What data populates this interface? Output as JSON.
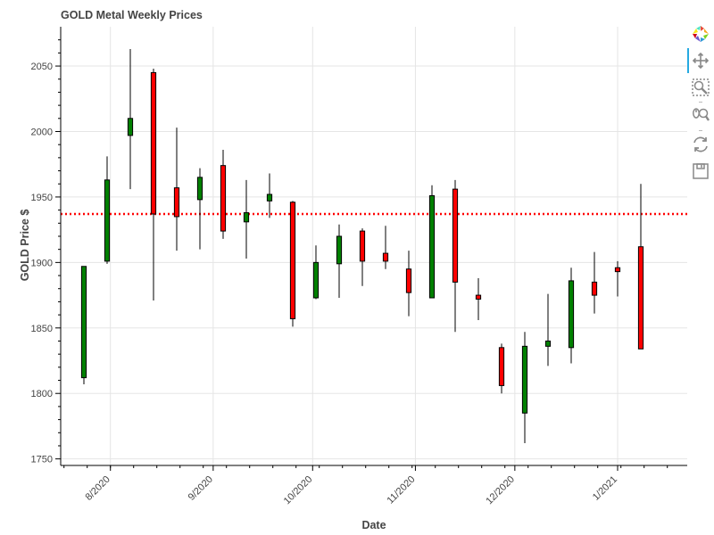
{
  "title": "GOLD Metal Weekly Prices",
  "toolbar": {
    "tools": [
      {
        "name": "bokeh-logo-icon"
      },
      {
        "name": "pan-tool-icon"
      },
      {
        "name": "box-zoom-tool-icon"
      },
      {
        "name": "wheel-zoom-tool-icon"
      },
      {
        "name": "reset-tool-icon"
      },
      {
        "name": "save-tool-icon"
      }
    ]
  },
  "chart_data": {
    "type": "candlestick",
    "title": "GOLD Metal Weekly Prices",
    "xlabel": "Date",
    "ylabel": "GOLD Price $",
    "x_tick_labels": [
      "8/2020",
      "9/2020",
      "10/2020",
      "11/2020",
      "12/2020",
      "1/2021"
    ],
    "x_ticks": [
      "2020-08-01",
      "2020-09-01",
      "2020-10-01",
      "2020-11-01",
      "2020-12-01",
      "2021-01-01"
    ],
    "xlim": [
      "2020-07-17",
      "2021-01-22"
    ],
    "y_ticks": [
      1750,
      1800,
      1850,
      1900,
      1950,
      2000,
      2050
    ],
    "ylim": [
      1745,
      2080
    ],
    "grid": true,
    "up_color": "#008000",
    "down_color": "#ff0000",
    "reference_line": {
      "value": 1937,
      "color": "#ff0000",
      "style": "dotted"
    },
    "candles": [
      {
        "date": "2020-07-24",
        "open": 1812,
        "high": 1897,
        "low": 1807,
        "close": 1897
      },
      {
        "date": "2020-07-31",
        "open": 1901,
        "high": 1981,
        "low": 1899,
        "close": 1963
      },
      {
        "date": "2020-08-07",
        "open": 1997,
        "high": 2063,
        "low": 1956,
        "close": 2010
      },
      {
        "date": "2020-08-14",
        "open": 2045,
        "high": 2048,
        "low": 1871,
        "close": 1937
      },
      {
        "date": "2020-08-21",
        "open": 1957,
        "high": 2003,
        "low": 1909,
        "close": 1935
      },
      {
        "date": "2020-08-28",
        "open": 1948,
        "high": 1972,
        "low": 1910,
        "close": 1965
      },
      {
        "date": "2020-09-04",
        "open": 1974,
        "high": 1986,
        "low": 1918,
        "close": 1924
      },
      {
        "date": "2020-09-11",
        "open": 1931,
        "high": 1963,
        "low": 1903,
        "close": 1938
      },
      {
        "date": "2020-09-18",
        "open": 1947,
        "high": 1968,
        "low": 1934,
        "close": 1952
      },
      {
        "date": "2020-09-25",
        "open": 1946,
        "high": 1947,
        "low": 1851,
        "close": 1857
      },
      {
        "date": "2020-10-02",
        "open": 1873,
        "high": 1913,
        "low": 1872,
        "close": 1900
      },
      {
        "date": "2020-10-09",
        "open": 1899,
        "high": 1929,
        "low": 1873,
        "close": 1920
      },
      {
        "date": "2020-10-16",
        "open": 1924,
        "high": 1926,
        "low": 1882,
        "close": 1901
      },
      {
        "date": "2020-10-23",
        "open": 1907,
        "high": 1928,
        "low": 1895,
        "close": 1901
      },
      {
        "date": "2020-10-30",
        "open": 1895,
        "high": 1909,
        "low": 1859,
        "close": 1877
      },
      {
        "date": "2020-11-06",
        "open": 1873,
        "high": 1959,
        "low": 1873,
        "close": 1951
      },
      {
        "date": "2020-11-13",
        "open": 1956,
        "high": 1963,
        "low": 1847,
        "close": 1885
      },
      {
        "date": "2020-11-20",
        "open": 1875,
        "high": 1888,
        "low": 1856,
        "close": 1872
      },
      {
        "date": "2020-11-27",
        "open": 1835,
        "high": 1838,
        "low": 1800,
        "close": 1806
      },
      {
        "date": "2020-12-04",
        "open": 1785,
        "high": 1847,
        "low": 1762,
        "close": 1836
      },
      {
        "date": "2020-12-11",
        "open": 1836,
        "high": 1876,
        "low": 1821,
        "close": 1840
      },
      {
        "date": "2020-12-18",
        "open": 1835,
        "high": 1896,
        "low": 1823,
        "close": 1886
      },
      {
        "date": "2020-12-25",
        "open": 1885,
        "high": 1908,
        "low": 1861,
        "close": 1875
      },
      {
        "date": "2021-01-01",
        "open": 1896,
        "high": 1901,
        "low": 1874,
        "close": 1893
      },
      {
        "date": "2021-01-08",
        "open": 1912,
        "high": 1960,
        "low": 1834,
        "close": 1834
      }
    ]
  }
}
